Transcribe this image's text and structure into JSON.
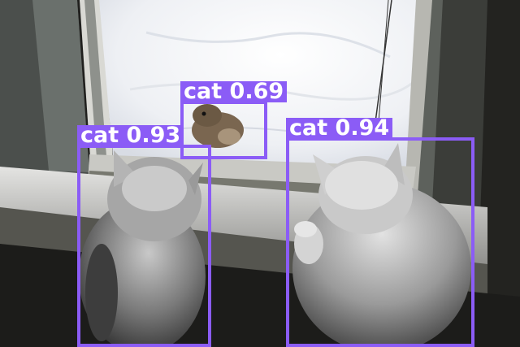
{
  "box_color": "#8b5cf6",
  "label_color": "#8b5cf6",
  "label_text_color": "#ffffff",
  "detections": [
    {
      "name": "cat-squirrel",
      "label": "cat 0.69"
    },
    {
      "name": "cat-left",
      "label": "cat 0.93"
    },
    {
      "name": "cat-right",
      "label": "cat 0.94"
    }
  ]
}
